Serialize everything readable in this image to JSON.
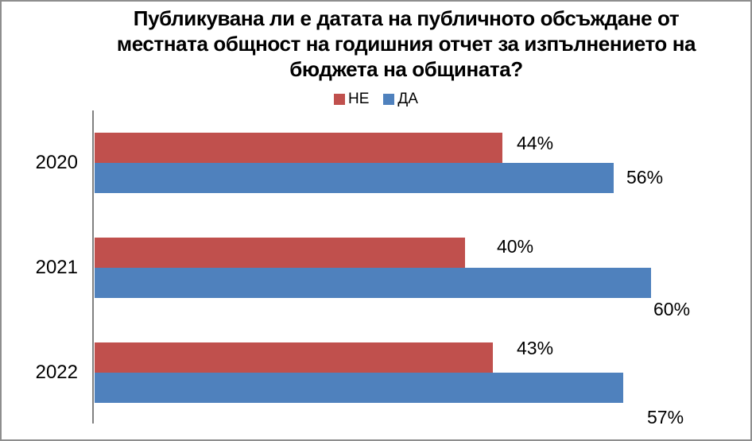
{
  "chart": {
    "title_lines": [
      "Публикувана ли е датата на публичното обсъждане от",
      "местната общност на годишния отчет за изпълнението на",
      "бюджета на общината?"
    ]
  },
  "chart_data": {
    "type": "bar",
    "orientation": "horizontal",
    "title": "Публикувана ли е датата на публичното обсъждане от местната общност на годишния отчет за изпълнението на бюджета на общината?",
    "categories": [
      "2020",
      "2021",
      "2022"
    ],
    "series": [
      {
        "name": "НЕ",
        "color": "#C0504D",
        "values": [
          44,
          40,
          43
        ]
      },
      {
        "name": "ДА",
        "color": "#4F81BD",
        "values": [
          56,
          60,
          57
        ]
      }
    ],
    "value_suffix": "%",
    "xlim": [
      0,
      71
    ],
    "grid": false,
    "legend_position": "top-center",
    "data_labels": "outside-end"
  },
  "colors": {
    "ne": "#C0504D",
    "da": "#4F81BD",
    "axis_line": "#808080",
    "border": "#8E8E8E",
    "background": "#FFFFFF",
    "text": "#000000"
  }
}
